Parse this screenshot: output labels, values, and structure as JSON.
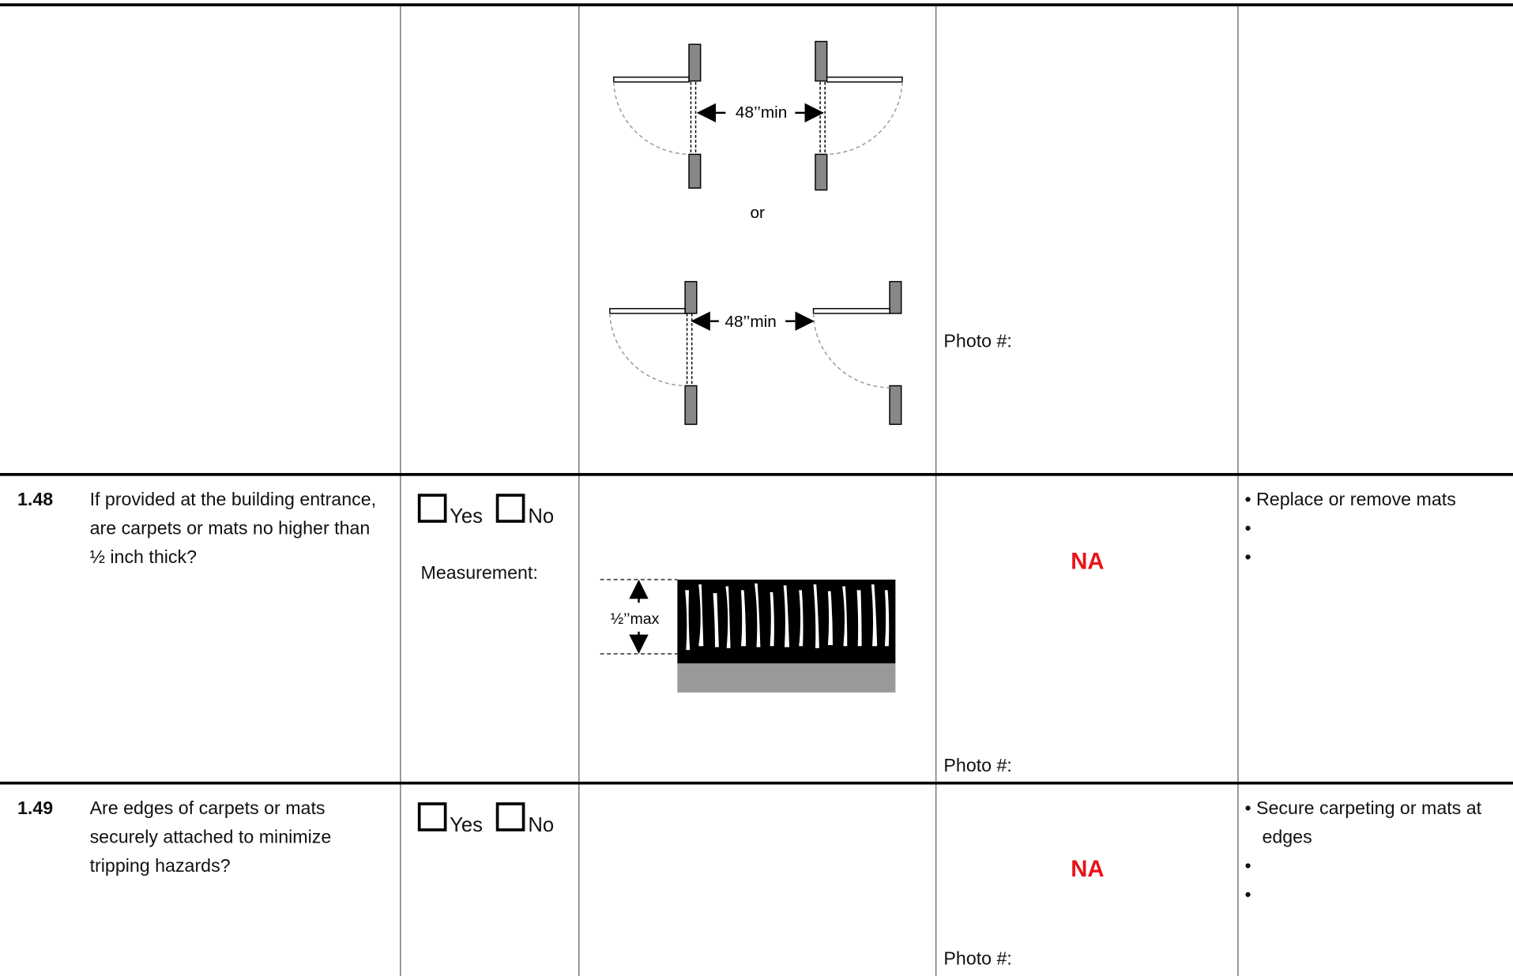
{
  "continuation_row": {
    "diagram": {
      "label_top": "48’’min",
      "separator": "or",
      "label_bottom": "48’’min"
    },
    "photo": "Photo #:"
  },
  "rows": [
    {
      "number": "1.48",
      "question": "If provided at the building entrance, are carpets or mats no higher than ½ inch thick?",
      "options": [
        "Yes",
        "No"
      ],
      "measurement": "Measurement:",
      "diagram": {
        "label": "½’’max"
      },
      "status": "NA",
      "photo": "Photo #:",
      "actions": [
        "• Replace or remove mats",
        "•",
        "•"
      ]
    },
    {
      "number": "1.49",
      "question": "Are edges of carpets or mats securely attached to minimize tripping hazards?",
      "options": [
        "Yes",
        "No"
      ],
      "status": "NA",
      "photo": "Photo #:",
      "actions": [
        "• Secure carpeting or mats at edges",
        "•",
        "•"
      ]
    }
  ]
}
